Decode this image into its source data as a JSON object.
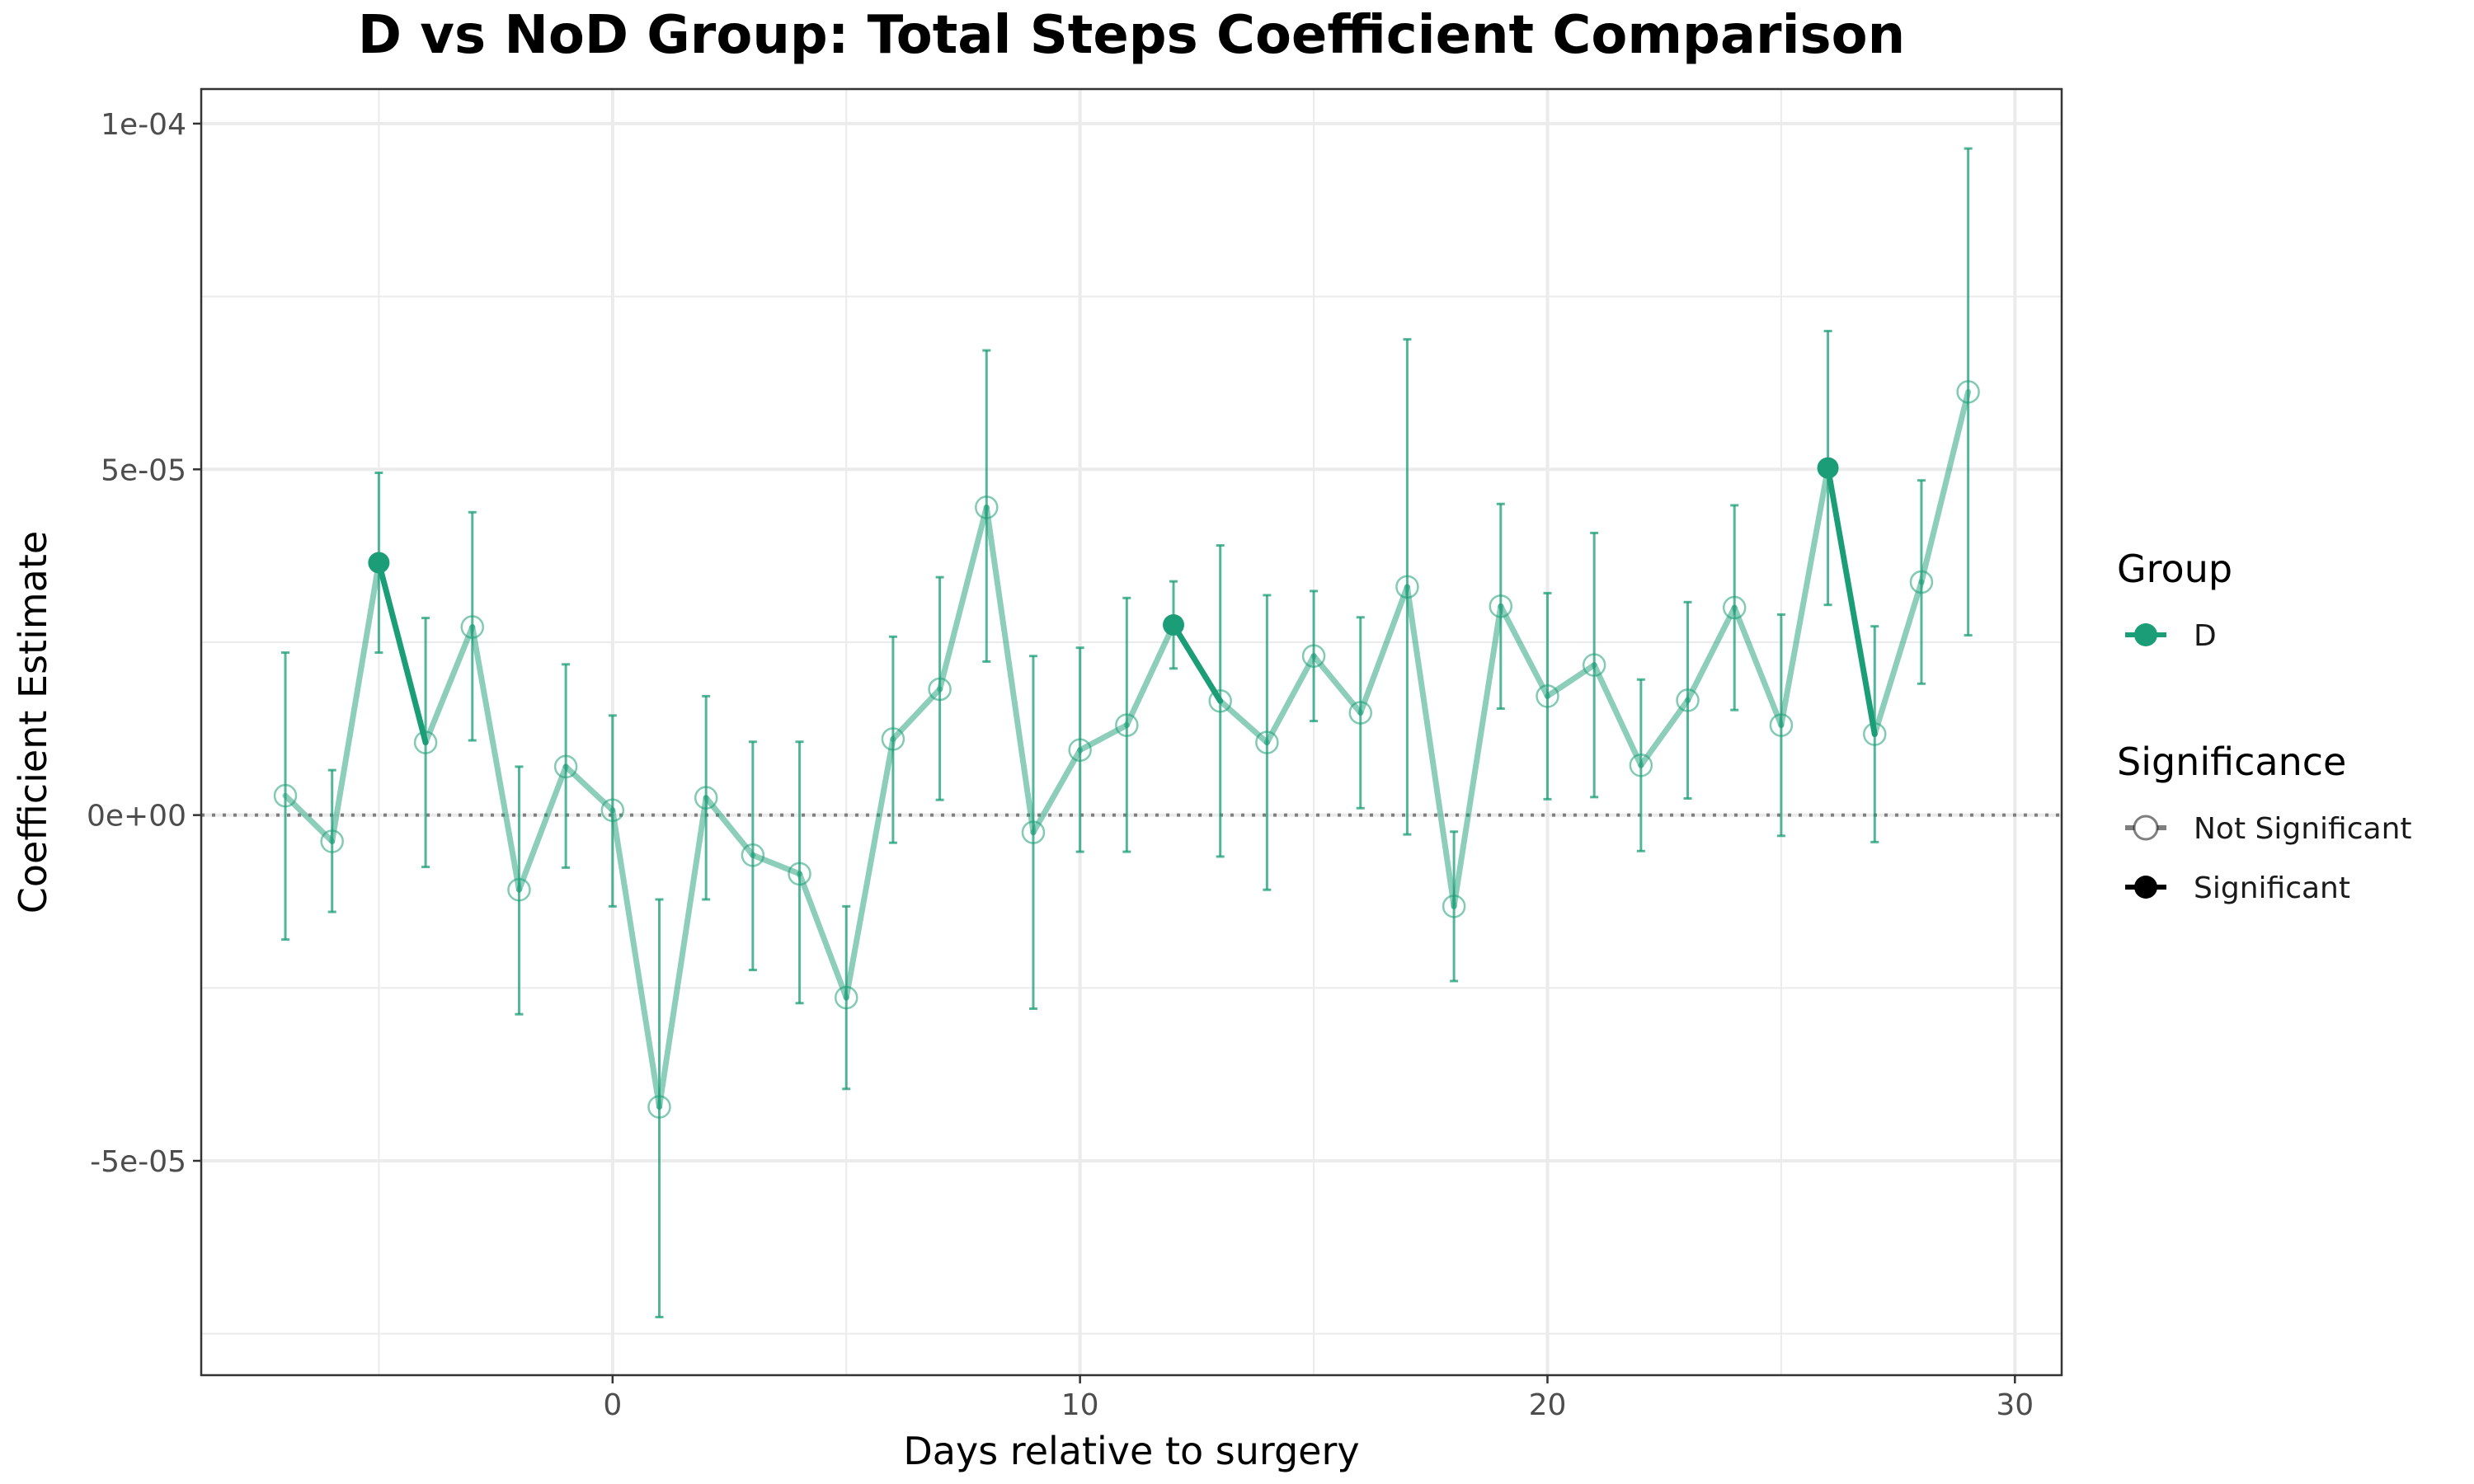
{
  "chart_data": {
    "type": "line",
    "title": "D vs NoD Group: Total Steps Coefficient Comparison",
    "xlabel": "Days relative to surgery",
    "ylabel": "Coefficient Estimate",
    "xlim": [
      -8.8,
      31
    ],
    "ylim": [
      -8.1e-05,
      0.000105
    ],
    "x_ticks": [
      0,
      10,
      20,
      30
    ],
    "x_tick_labels": [
      "0",
      "10",
      "20",
      "30"
    ],
    "y_ticks": [
      -5e-05,
      0,
      5e-05,
      0.0001
    ],
    "y_tick_labels": [
      "-5e-05",
      "0e+00",
      "5e-05",
      "1e-04"
    ],
    "grid": true,
    "reference_line": {
      "y": 0,
      "style": "dotted"
    },
    "legend_position": "right",
    "colors": {
      "group_D": "#1b9e77",
      "frame": "#333333",
      "grid": "#ebebeb"
    },
    "legend": {
      "group_title": "Group",
      "group_items": [
        "D"
      ],
      "significance_title": "Significance",
      "significance_items": [
        "Not Significant",
        "Significant"
      ]
    },
    "series": [
      {
        "name": "D",
        "points": [
          {
            "x": -7,
            "y": 2.8e-06,
            "lo": -1.8e-05,
            "hi": 2.35e-05,
            "sig": false
          },
          {
            "x": -6,
            "y": -3.8e-06,
            "lo": -1.4e-05,
            "hi": 6.5e-06,
            "sig": false
          },
          {
            "x": -5,
            "y": 3.65e-05,
            "lo": 2.35e-05,
            "hi": 4.95e-05,
            "sig": true
          },
          {
            "x": -4,
            "y": 1.05e-05,
            "lo": -7.5e-06,
            "hi": 2.85e-05,
            "sig": false
          },
          {
            "x": -3,
            "y": 2.72e-05,
            "lo": 1.08e-05,
            "hi": 4.38e-05,
            "sig": false
          },
          {
            "x": -2,
            "y": -1.08e-05,
            "lo": -2.88e-05,
            "hi": 7e-06,
            "sig": false
          },
          {
            "x": -1,
            "y": 7e-06,
            "lo": -7.6e-06,
            "hi": 2.18e-05,
            "sig": false
          },
          {
            "x": 0,
            "y": 7e-07,
            "lo": -1.32e-05,
            "hi": 1.44e-05,
            "sig": false
          },
          {
            "x": 1,
            "y": -4.22e-05,
            "lo": -7.26e-05,
            "hi": -1.22e-05,
            "sig": false
          },
          {
            "x": 2,
            "y": 2.5e-06,
            "lo": -1.22e-05,
            "hi": 1.72e-05,
            "sig": false
          },
          {
            "x": 3,
            "y": -5.8e-06,
            "lo": -2.24e-05,
            "hi": 1.06e-05,
            "sig": false
          },
          {
            "x": 4,
            "y": -8.5e-06,
            "lo": -2.72e-05,
            "hi": 1.06e-05,
            "sig": false
          },
          {
            "x": 5,
            "y": -2.64e-05,
            "lo": -3.96e-05,
            "hi": -1.32e-05,
            "sig": false
          },
          {
            "x": 6,
            "y": 1.1e-05,
            "lo": -4e-06,
            "hi": 2.58e-05,
            "sig": false
          },
          {
            "x": 7,
            "y": 1.82e-05,
            "lo": 2.2e-06,
            "hi": 3.44e-05,
            "sig": false
          },
          {
            "x": 8,
            "y": 4.45e-05,
            "lo": 2.22e-05,
            "hi": 6.72e-05,
            "sig": false
          },
          {
            "x": 9,
            "y": -2.5e-06,
            "lo": -2.8e-05,
            "hi": 2.3e-05,
            "sig": false
          },
          {
            "x": 10,
            "y": 9.4e-06,
            "lo": -5.3e-06,
            "hi": 2.42e-05,
            "sig": false
          },
          {
            "x": 11,
            "y": 1.3e-05,
            "lo": -5.3e-06,
            "hi": 3.14e-05,
            "sig": false
          },
          {
            "x": 12,
            "y": 2.75e-05,
            "lo": 2.12e-05,
            "hi": 3.38e-05,
            "sig": true
          },
          {
            "x": 13,
            "y": 1.65e-05,
            "lo": -6e-06,
            "hi": 3.9e-05,
            "sig": false
          },
          {
            "x": 14,
            "y": 1.05e-05,
            "lo": -1.08e-05,
            "hi": 3.18e-05,
            "sig": false
          },
          {
            "x": 15,
            "y": 2.3e-05,
            "lo": 1.36e-05,
            "hi": 3.24e-05,
            "sig": false
          },
          {
            "x": 16,
            "y": 1.48e-05,
            "lo": 1e-06,
            "hi": 2.86e-05,
            "sig": false
          },
          {
            "x": 17,
            "y": 3.3e-05,
            "lo": -2.8e-06,
            "hi": 6.88e-05,
            "sig": false
          },
          {
            "x": 18,
            "y": -1.32e-05,
            "lo": -2.4e-05,
            "hi": -2.4e-06,
            "sig": false
          },
          {
            "x": 19,
            "y": 3.02e-05,
            "lo": 1.54e-05,
            "hi": 4.5e-05,
            "sig": false
          },
          {
            "x": 20,
            "y": 1.72e-05,
            "lo": 2.3e-06,
            "hi": 3.21e-05,
            "sig": false
          },
          {
            "x": 21,
            "y": 2.17e-05,
            "lo": 2.6e-06,
            "hi": 4.08e-05,
            "sig": false
          },
          {
            "x": 22,
            "y": 7.2e-06,
            "lo": -5.2e-06,
            "hi": 1.96e-05,
            "sig": false
          },
          {
            "x": 23,
            "y": 1.66e-05,
            "lo": 2.4e-06,
            "hi": 3.08e-05,
            "sig": false
          },
          {
            "x": 24,
            "y": 3e-05,
            "lo": 1.52e-05,
            "hi": 4.48e-05,
            "sig": false
          },
          {
            "x": 25,
            "y": 1.3e-05,
            "lo": -3e-06,
            "hi": 2.9e-05,
            "sig": false
          },
          {
            "x": 26,
            "y": 5.02e-05,
            "lo": 3.04e-05,
            "hi": 7e-05,
            "sig": true
          },
          {
            "x": 27,
            "y": 1.17e-05,
            "lo": -3.9e-06,
            "hi": 2.73e-05,
            "sig": false
          },
          {
            "x": 28,
            "y": 3.37e-05,
            "lo": 1.9e-05,
            "hi": 4.84e-05,
            "sig": false
          },
          {
            "x": 29,
            "y": 6.12e-05,
            "lo": 2.6e-05,
            "hi": 9.64e-05,
            "sig": false
          }
        ]
      }
    ]
  }
}
